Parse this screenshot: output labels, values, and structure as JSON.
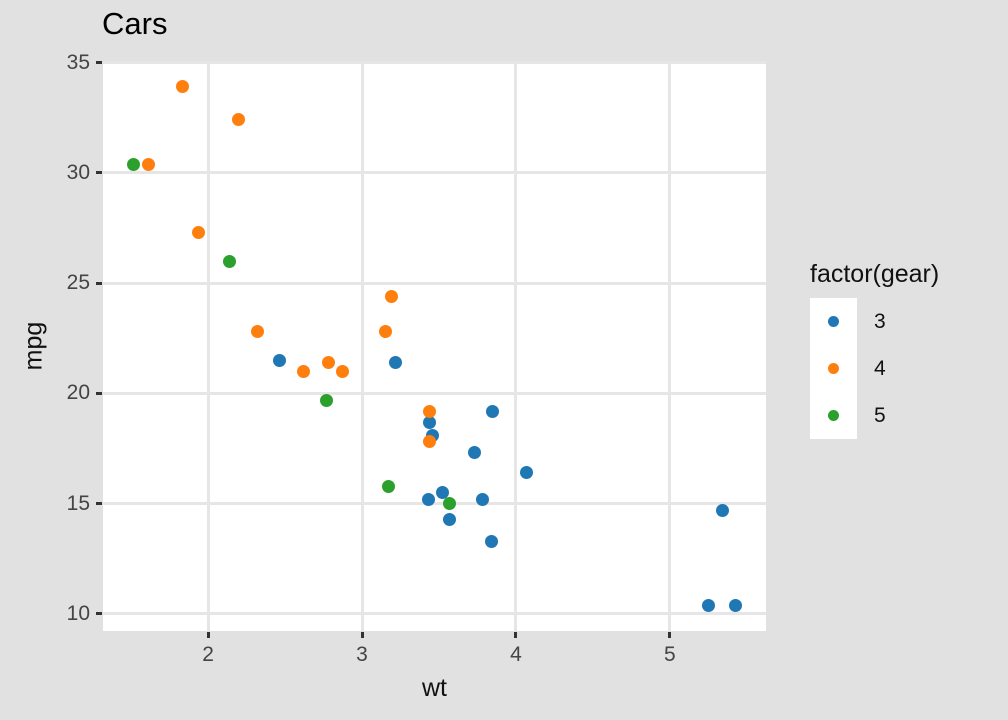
{
  "figure": {
    "background_color": "#e1e1e1",
    "panel_background_color": "#ffffff",
    "grid_color": "#e6e6e6",
    "tick_mark_color": "#333333",
    "tick_label_color": "#444444"
  },
  "chart_data": {
    "type": "scatter",
    "title": "Cars",
    "xlabel": "wt",
    "ylabel": "mpg",
    "xlim": [
      1.317,
      5.625
    ],
    "ylim": [
      9.225,
      35.075
    ],
    "xticks": [
      2,
      3,
      4,
      5
    ],
    "yticks": [
      10,
      15,
      20,
      25,
      30,
      35
    ],
    "grid": true,
    "legend": {
      "title": "factor(gear)",
      "position": "right",
      "entries": [
        {
          "label": "3",
          "color": "#1f77b4"
        },
        {
          "label": "4",
          "color": "#ff7f0e"
        },
        {
          "label": "5",
          "color": "#2ca02c"
        }
      ]
    },
    "points_format": [
      "wt",
      "mpg",
      "gear"
    ],
    "points": [
      [
        2.62,
        21.0,
        4
      ],
      [
        2.875,
        21.0,
        4
      ],
      [
        2.32,
        22.8,
        4
      ],
      [
        3.215,
        21.4,
        3
      ],
      [
        3.44,
        18.7,
        3
      ],
      [
        3.46,
        18.1,
        3
      ],
      [
        3.57,
        14.3,
        3
      ],
      [
        3.19,
        24.4,
        4
      ],
      [
        3.15,
        22.8,
        4
      ],
      [
        3.44,
        19.2,
        4
      ],
      [
        3.44,
        17.8,
        4
      ],
      [
        4.07,
        16.4,
        3
      ],
      [
        3.73,
        17.3,
        3
      ],
      [
        3.78,
        15.2,
        3
      ],
      [
        5.25,
        10.4,
        3
      ],
      [
        5.424,
        10.4,
        3
      ],
      [
        5.345,
        14.7,
        3
      ],
      [
        2.2,
        32.4,
        4
      ],
      [
        1.615,
        30.4,
        4
      ],
      [
        1.835,
        33.9,
        4
      ],
      [
        2.465,
        21.5,
        3
      ],
      [
        3.52,
        15.5,
        3
      ],
      [
        3.435,
        15.2,
        3
      ],
      [
        3.84,
        13.3,
        3
      ],
      [
        3.845,
        19.2,
        3
      ],
      [
        1.935,
        27.3,
        4
      ],
      [
        2.14,
        26.0,
        5
      ],
      [
        1.513,
        30.4,
        5
      ],
      [
        3.17,
        15.8,
        5
      ],
      [
        2.77,
        19.7,
        5
      ],
      [
        3.57,
        15.0,
        5
      ],
      [
        2.78,
        21.4,
        4
      ]
    ]
  }
}
